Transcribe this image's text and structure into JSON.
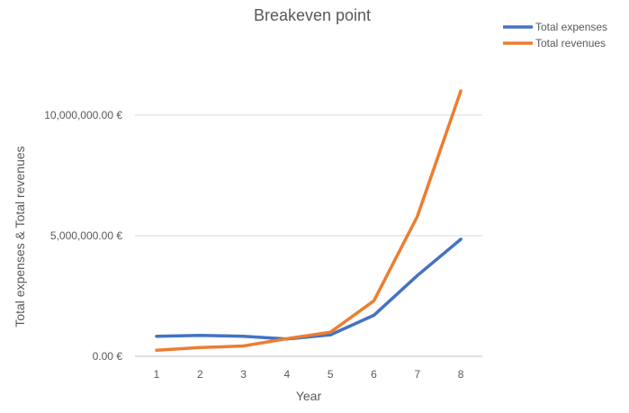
{
  "chart_data": {
    "type": "line",
    "title": "Breakeven point",
    "xlabel": "Year",
    "ylabel": "Total expenses & Total revenues",
    "x": [
      1,
      2,
      3,
      4,
      5,
      6,
      7,
      8
    ],
    "x_tick_labels": [
      "1",
      "2",
      "3",
      "4",
      "5",
      "6",
      "7",
      "8"
    ],
    "ylim": [
      0,
      11000000
    ],
    "y_ticks": [
      0,
      5000000,
      10000000
    ],
    "y_tick_labels": [
      "0.00 €",
      "5,000,000.00 €",
      "10,000,000.00 €"
    ],
    "grid": "horizontal",
    "legend_position": "top-right",
    "series": [
      {
        "name": "Total expenses",
        "color": "#4472C4",
        "values": [
          830000,
          870000,
          830000,
          720000,
          890000,
          1700000,
          3350000,
          4850000
        ]
      },
      {
        "name": "Total revenues",
        "color": "#ED7D31",
        "values": [
          250000,
          360000,
          430000,
          730000,
          1000000,
          2300000,
          5800000,
          11000000
        ]
      }
    ]
  }
}
